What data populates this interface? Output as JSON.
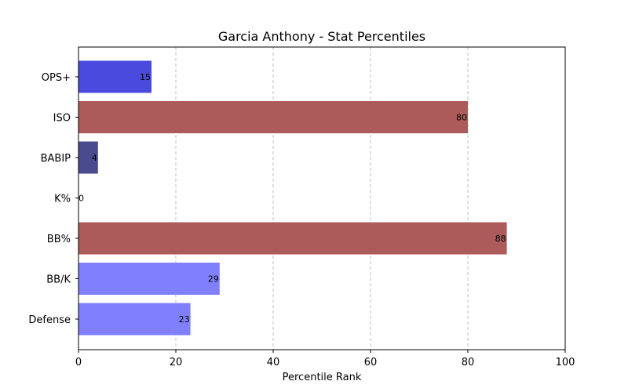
{
  "chart_data": {
    "type": "bar",
    "orientation": "horizontal",
    "title": "Garcia Anthony - Stat Percentiles",
    "xlabel": "Percentile Rank",
    "ylabel": "",
    "xlim": [
      0,
      100
    ],
    "xticks": [
      0,
      20,
      40,
      60,
      80,
      100
    ],
    "grid": "vertical dashed",
    "categories": [
      "OPS+",
      "ISO",
      "BABIP",
      "K%",
      "BB%",
      "BB/K",
      "Defense"
    ],
    "values": [
      15,
      80,
      4,
      0,
      88,
      29,
      23
    ],
    "colors": [
      "#4a4adf",
      "#ac5a5a",
      "#4a4a8f",
      "#4a4adf",
      "#ac5a5a",
      "#8080ff",
      "#8080ff"
    ]
  }
}
